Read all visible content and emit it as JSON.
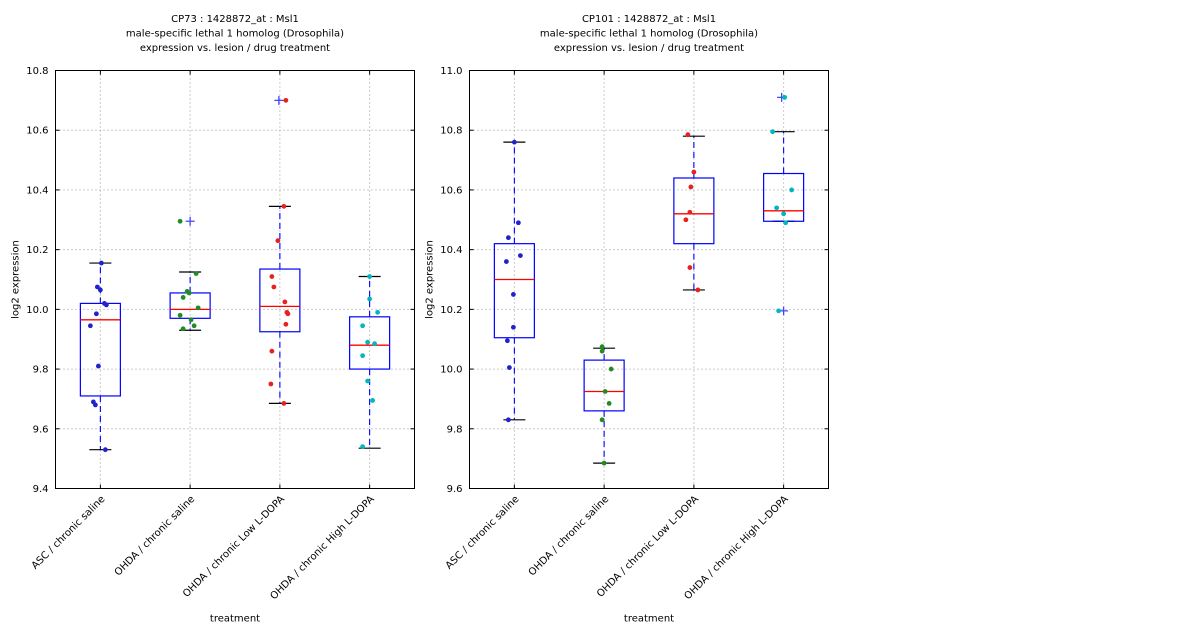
{
  "figure": {
    "background": "#ffffff",
    "xlabel": "treatment",
    "ylabel": "log2 expression"
  },
  "style": {
    "box_color": "#0000ff",
    "median_color": "#ff0000",
    "whisker_color": "#0000ff",
    "cap_color": "#000000",
    "flier_color": "#4444ff",
    "grid_color": "#999999",
    "axis_color": "#000000",
    "text_color": "#000000"
  },
  "chart_data": [
    {
      "type": "box",
      "name": "cp73",
      "title_lines": [
        "CP73 : 1428872_at : Msl1",
        "male-specific lethal 1 homolog (Drosophila)",
        "expression vs. lesion / drug treatment"
      ],
      "xlabel": "treatment",
      "ylabel": "log2 expression",
      "ylim": [
        9.4,
        10.8
      ],
      "yticks": [
        9.4,
        9.6,
        9.8,
        10.0,
        10.2,
        10.4,
        10.6,
        10.8
      ],
      "grid": true,
      "legend": "none",
      "categories": [
        "ASC / chronic saline",
        "OHDA / chronic saline",
        "OHDA / chronic Low L-DOPA",
        "OHDA / chronic High L-DOPA"
      ],
      "groups": [
        {
          "label": "ASC / chronic saline",
          "point_color": "#2222cc",
          "box": {
            "whisker_low": 9.53,
            "q1": 9.71,
            "median": 9.965,
            "q3": 10.02,
            "whisker_high": 10.155
          },
          "points": [
            [
              10.155,
              1
            ],
            [
              10.075,
              -3
            ],
            [
              10.065,
              0
            ],
            [
              10.02,
              4
            ],
            [
              10.015,
              6
            ],
            [
              9.985,
              -4
            ],
            [
              9.945,
              -10
            ],
            [
              9.81,
              -2
            ],
            [
              9.69,
              -7
            ],
            [
              9.68,
              -5
            ],
            [
              9.53,
              5
            ]
          ],
          "fliers": []
        },
        {
          "label": "OHDA / chronic saline",
          "point_color": "#228b22",
          "box": {
            "whisker_low": 9.93,
            "q1": 9.97,
            "median": 10.0,
            "q3": 10.055,
            "whisker_high": 10.125
          },
          "points": [
            [
              10.295,
              -10
            ],
            [
              10.12,
              6
            ],
            [
              10.06,
              -3
            ],
            [
              10.055,
              -1
            ],
            [
              10.04,
              -7
            ],
            [
              10.005,
              8
            ],
            [
              9.98,
              -10
            ],
            [
              9.965,
              1
            ],
            [
              9.945,
              4
            ],
            [
              9.935,
              -7
            ]
          ],
          "fliers": [
            [
              10.295,
              0
            ]
          ]
        },
        {
          "label": "OHDA / chronic Low L-DOPA",
          "point_color": "#e8211d",
          "box": {
            "whisker_low": 9.685,
            "q1": 9.925,
            "median": 10.01,
            "q3": 10.135,
            "whisker_high": 10.345
          },
          "points": [
            [
              10.7,
              6
            ],
            [
              10.345,
              4
            ],
            [
              10.23,
              -2
            ],
            [
              10.11,
              -8
            ],
            [
              10.075,
              -6
            ],
            [
              10.025,
              5
            ],
            [
              9.99,
              7
            ],
            [
              9.985,
              8
            ],
            [
              9.95,
              6
            ],
            [
              9.86,
              -8
            ],
            [
              9.75,
              -9
            ],
            [
              9.685,
              4
            ]
          ],
          "fliers": [
            [
              10.7,
              -1
            ]
          ]
        },
        {
          "label": "OHDA / chronic High L-DOPA",
          "point_color": "#00b7bd",
          "box": {
            "whisker_low": 9.535,
            "q1": 9.8,
            "median": 9.88,
            "q3": 9.975,
            "whisker_high": 10.11
          },
          "points": [
            [
              10.11,
              0
            ],
            [
              10.035,
              0
            ],
            [
              9.99,
              8
            ],
            [
              9.945,
              -7
            ],
            [
              9.89,
              -2
            ],
            [
              9.885,
              5
            ],
            [
              9.845,
              -7
            ],
            [
              9.76,
              -2
            ],
            [
              9.695,
              3
            ],
            [
              9.54,
              -7
            ]
          ],
          "fliers": []
        }
      ]
    },
    {
      "type": "box",
      "name": "cp101",
      "title_lines": [
        "CP101 : 1428872_at : Msl1",
        "male-specific lethal 1 homolog (Drosophila)",
        "expression vs. lesion / drug treatment"
      ],
      "xlabel": "treatment",
      "ylabel": "log2 expression",
      "ylim": [
        9.6,
        11.0
      ],
      "yticks": [
        9.6,
        9.8,
        10.0,
        10.2,
        10.4,
        10.6,
        10.8,
        11.0
      ],
      "grid": true,
      "legend": "none",
      "categories": [
        "ASC / chronic saline",
        "OHDA / chronic saline",
        "OHDA / chronic Low L-DOPA",
        "OHDA / chronic High L-DOPA"
      ],
      "groups": [
        {
          "label": "ASC / chronic saline",
          "point_color": "#2222cc",
          "box": {
            "whisker_low": 9.83,
            "q1": 10.105,
            "median": 10.3,
            "q3": 10.42,
            "whisker_high": 10.76
          },
          "points": [
            [
              10.76,
              0
            ],
            [
              10.49,
              4
            ],
            [
              10.44,
              -6
            ],
            [
              10.38,
              6
            ],
            [
              10.36,
              -8
            ],
            [
              10.25,
              -1
            ],
            [
              10.14,
              -1
            ],
            [
              10.095,
              -7
            ],
            [
              10.005,
              -5
            ],
            [
              9.83,
              -6
            ]
          ],
          "fliers": []
        },
        {
          "label": "OHDA / chronic saline",
          "point_color": "#228b22",
          "box": {
            "whisker_low": 9.685,
            "q1": 9.86,
            "median": 9.925,
            "q3": 10.03,
            "whisker_high": 10.07
          },
          "points": [
            [
              10.075,
              -2
            ],
            [
              10.06,
              -2
            ],
            [
              10.0,
              7
            ],
            [
              9.925,
              1
            ],
            [
              9.885,
              5
            ],
            [
              9.83,
              -2
            ],
            [
              9.685,
              0
            ]
          ],
          "fliers": []
        },
        {
          "label": "OHDA / chronic Low L-DOPA",
          "point_color": "#e8211d",
          "box": {
            "whisker_low": 10.265,
            "q1": 10.42,
            "median": 10.52,
            "q3": 10.64,
            "whisker_high": 10.78
          },
          "points": [
            [
              10.785,
              -6
            ],
            [
              10.66,
              0
            ],
            [
              10.61,
              -3
            ],
            [
              10.525,
              -4
            ],
            [
              10.5,
              -8
            ],
            [
              10.34,
              -4
            ],
            [
              10.265,
              4
            ]
          ],
          "fliers": []
        },
        {
          "label": "OHDA / chronic High L-DOPA",
          "point_color": "#00b7bd",
          "box": {
            "whisker_low": 10.495,
            "q1": 10.495,
            "median": 10.53,
            "q3": 10.655,
            "whisker_high": 10.795
          },
          "points": [
            [
              10.91,
              1
            ],
            [
              10.795,
              -11
            ],
            [
              10.6,
              8
            ],
            [
              10.54,
              -7
            ],
            [
              10.52,
              0
            ],
            [
              10.49,
              2
            ],
            [
              10.195,
              -5
            ]
          ],
          "fliers": [
            [
              10.91,
              -2
            ],
            [
              10.195,
              0
            ]
          ]
        }
      ]
    }
  ]
}
